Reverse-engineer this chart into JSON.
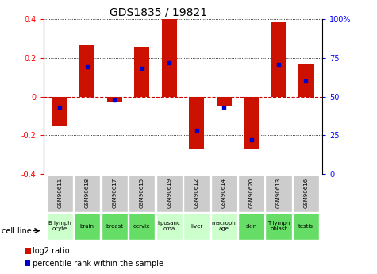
{
  "title": "GDS1835 / 19821",
  "samples": [
    "GSM90611",
    "GSM90618",
    "GSM90617",
    "GSM90615",
    "GSM90619",
    "GSM90612",
    "GSM90614",
    "GSM90620",
    "GSM90613",
    "GSM90616"
  ],
  "cell_lines": [
    "B lymph\nocyte",
    "brain",
    "breast",
    "cervix",
    "liposanc\noma",
    "liver",
    "macroph\nage",
    "skin",
    "T lymph\noblast",
    "testis"
  ],
  "log2_ratio": [
    -0.155,
    0.265,
    -0.025,
    0.255,
    0.4,
    -0.27,
    -0.045,
    -0.27,
    0.385,
    0.17
  ],
  "percentile_rank_y": [
    -0.055,
    0.155,
    -0.02,
    0.145,
    0.175,
    -0.175,
    -0.055,
    -0.225,
    0.165,
    0.08
  ],
  "bar_color": "#cc1100",
  "dot_color": "#0000cc",
  "ylim": [
    -0.4,
    0.4
  ],
  "yticks_left": [
    -0.4,
    -0.2,
    0.0,
    0.2,
    0.4
  ],
  "yticks_right_vals": [
    0,
    25,
    50,
    75,
    100
  ],
  "cell_line_bg_light": "#ccffcc",
  "cell_line_bg_dark": "#66dd66",
  "sample_bg": "#cccccc",
  "zero_line_color": "#cc0000",
  "legend_red_label": "log2 ratio",
  "legend_blue_label": "percentile rank within the sample",
  "highlight_indices": [
    1,
    2,
    3,
    7,
    8,
    9
  ]
}
